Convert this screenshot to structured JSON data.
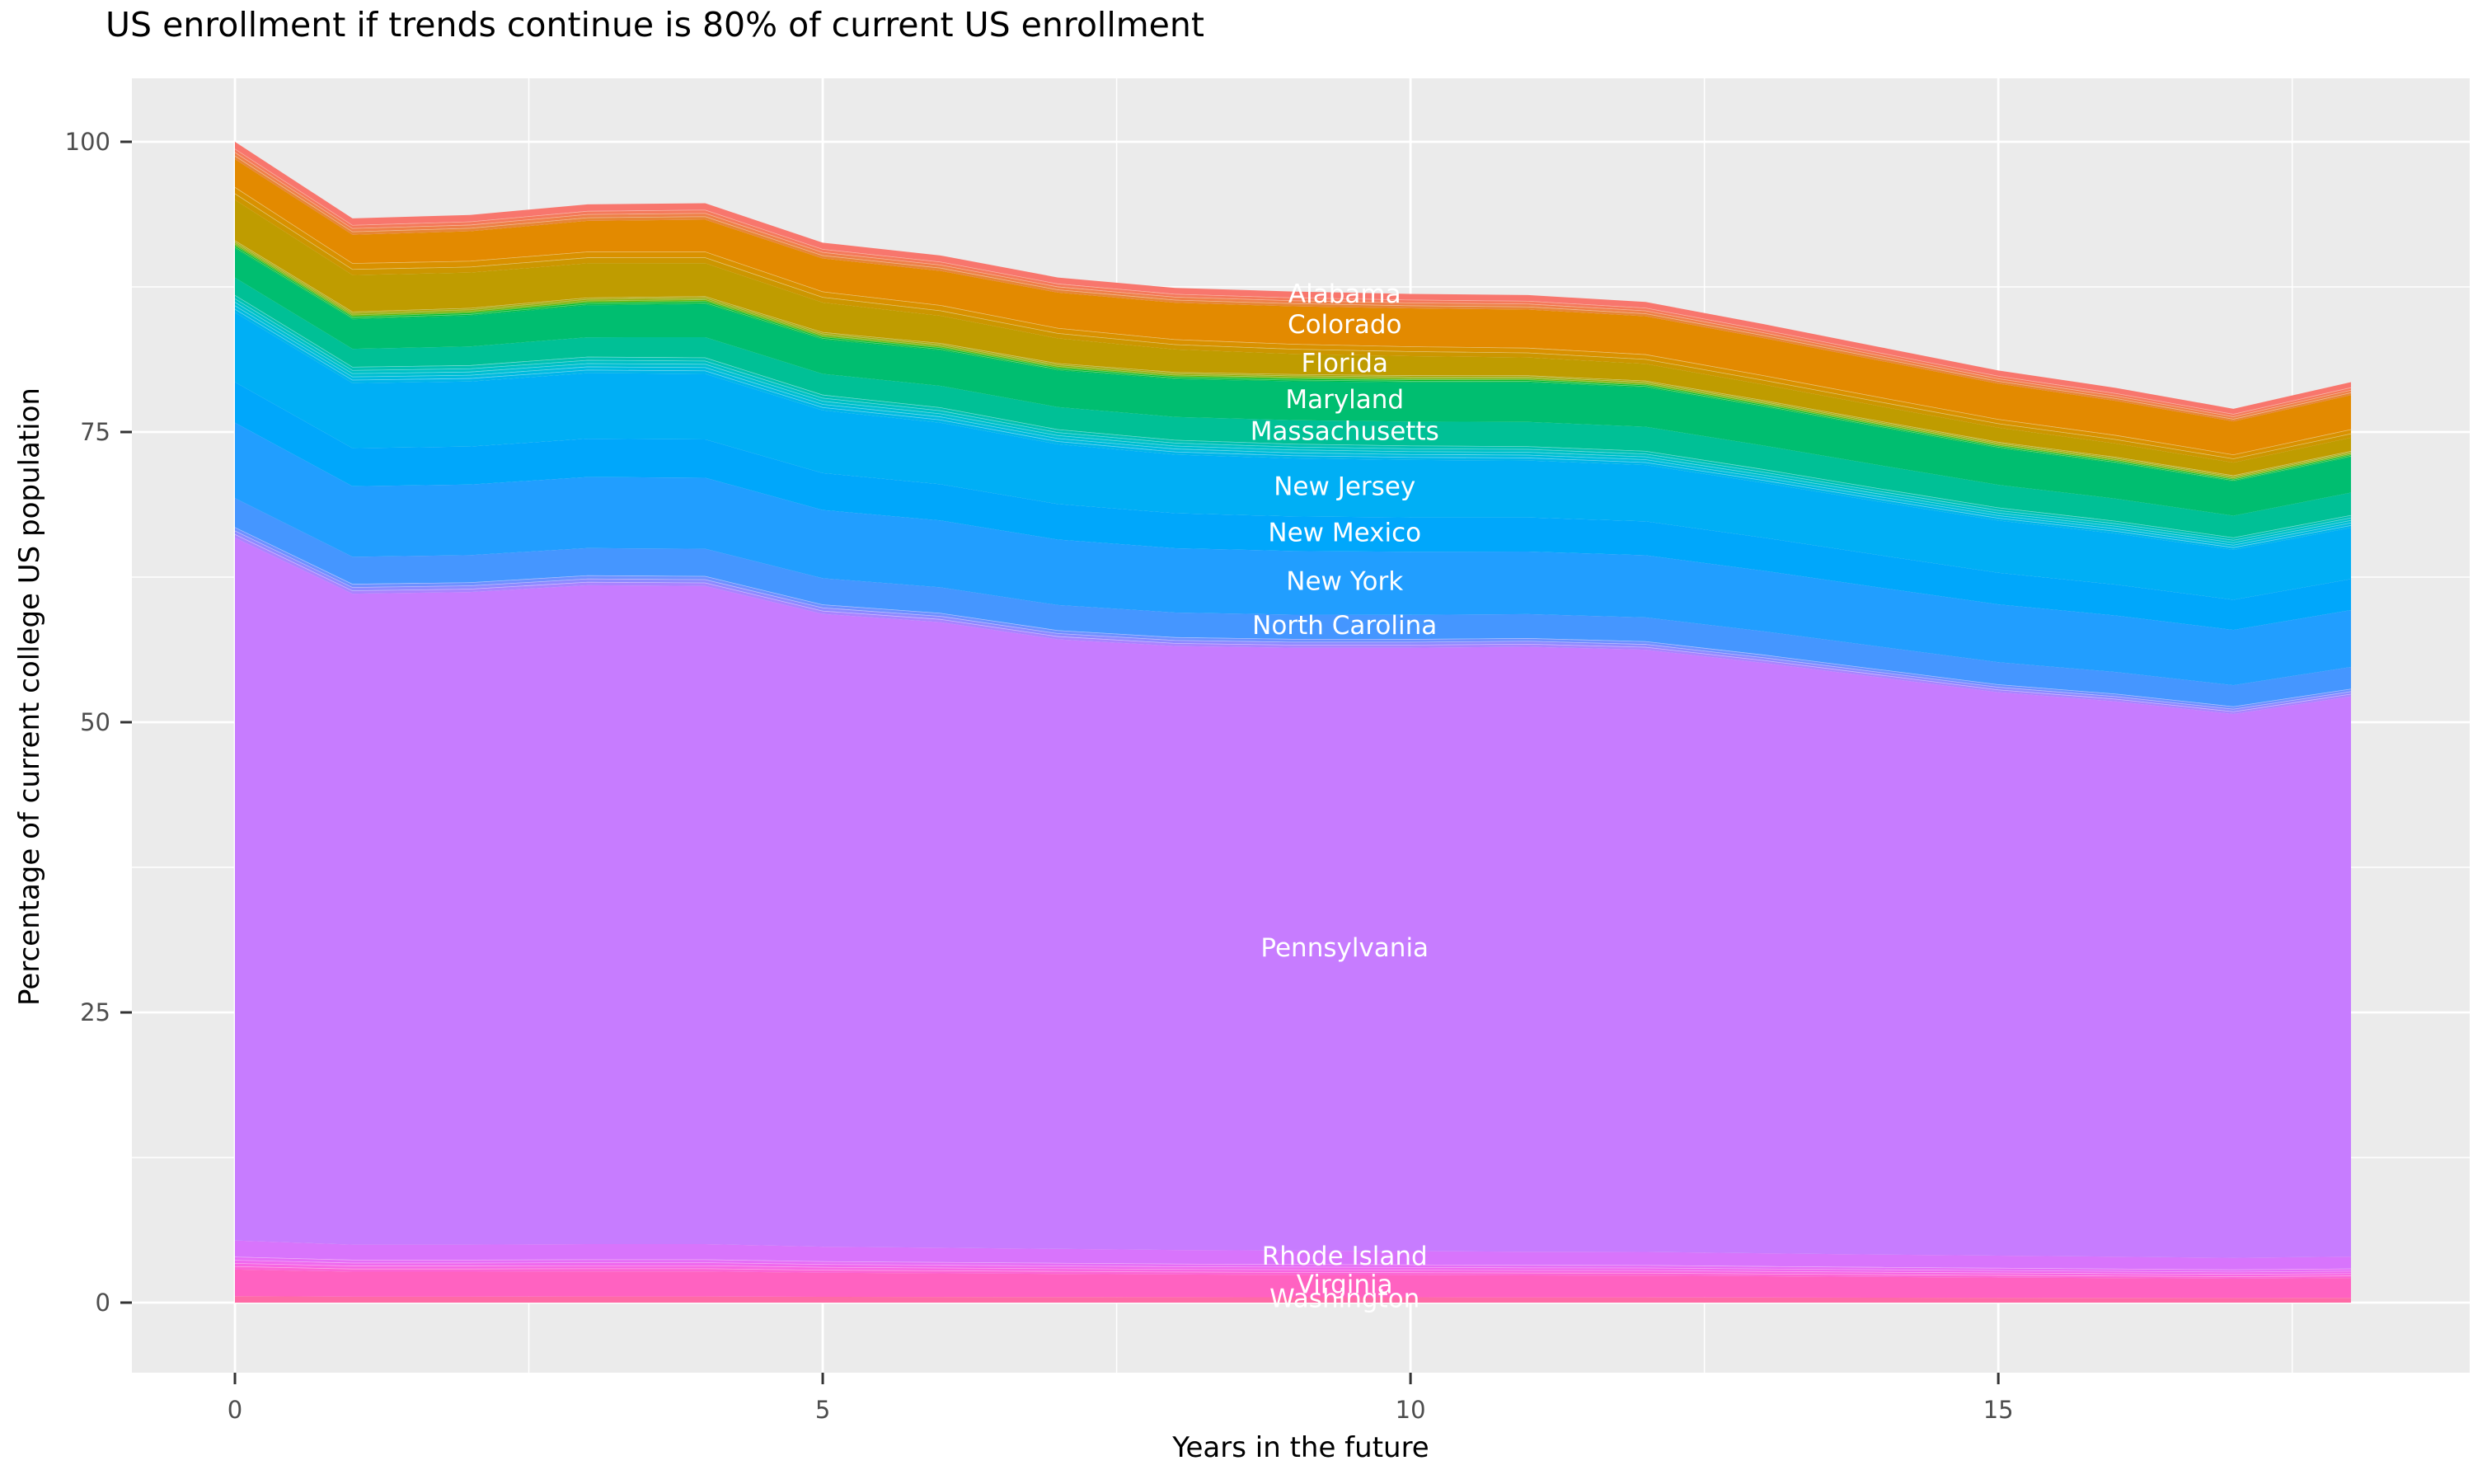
{
  "chart_data": {
    "type": "area",
    "variant": "stacked-area",
    "title": "US enrollment if trends continue is 80% of current US enrollment",
    "xlabel": "Years in the future",
    "ylabel": "Percentage of current college US population",
    "xlim": [
      0,
      18
    ],
    "ylim": [
      0,
      100
    ],
    "grid": "major-and-minor-white-on-grey-panel",
    "legend": "none-labels-drawn-on-areas",
    "series_label_x": 9.44,
    "x": [
      0,
      1,
      2,
      3,
      4,
      5,
      6,
      7,
      8,
      9,
      10,
      11,
      12,
      13,
      14,
      15,
      16,
      17,
      18
    ],
    "x_ticks": [
      0,
      5,
      10,
      15
    ],
    "x_tick_labels": [
      "0",
      "5",
      "10",
      "15"
    ],
    "x_minor": [
      2.5,
      7.5,
      12.5,
      17.5
    ],
    "y_ticks": [
      0,
      25,
      50,
      75,
      100
    ],
    "y_tick_labels": [
      "0",
      "25",
      "50",
      "75",
      "100"
    ],
    "y_minor": [
      12.5,
      37.5,
      62.5,
      87.5
    ],
    "colors": {
      "panel_bg": "#EBEBEB",
      "grid": "#FFFFFF",
      "tick_text": "#4D4D4D",
      "tick_mark": "#333333",
      "title_text": "#000000",
      "series_label": "#FFFFFF"
    },
    "series": [
      {
        "name": "alabama",
        "label": "Alabama",
        "color": "#F8766D",
        "values": [
          0.6,
          0.57,
          0.57,
          0.57,
          0.57,
          0.55,
          0.54,
          0.53,
          0.52,
          0.52,
          0.51,
          0.51,
          0.5,
          0.49,
          0.48,
          0.47,
          0.46,
          0.45,
          0.46
        ]
      },
      {
        "name": "others-a",
        "stripe_colors": [
          "#F4795B",
          "#EE8049",
          "#E78636"
        ],
        "values": [
          0.9,
          0.84,
          0.84,
          0.85,
          0.85,
          0.81,
          0.79,
          0.77,
          0.76,
          0.75,
          0.74,
          0.74,
          0.73,
          0.71,
          0.69,
          0.67,
          0.66,
          0.64,
          0.66
        ]
      },
      {
        "name": "colorado",
        "label": "Colorado",
        "color": "#E38A00",
        "values": [
          2.4,
          2.45,
          2.55,
          2.65,
          2.75,
          2.85,
          2.95,
          3.05,
          3.15,
          3.25,
          3.28,
          3.3,
          3.28,
          3.22,
          3.15,
          3.05,
          2.95,
          2.85,
          2.95
        ]
      },
      {
        "name": "others-b",
        "stripe_colors": [
          "#D99100",
          "#CC9600"
        ],
        "values": [
          1.1,
          1.02,
          1.01,
          1.01,
          1.0,
          0.95,
          0.92,
          0.89,
          0.87,
          0.85,
          0.84,
          0.83,
          0.82,
          0.79,
          0.77,
          0.74,
          0.72,
          0.7,
          0.72
        ]
      },
      {
        "name": "florida",
        "label": "Florida",
        "color": "#BF9C00",
        "values": [
          3.5,
          3.15,
          3.05,
          2.95,
          2.85,
          2.55,
          2.35,
          2.15,
          1.95,
          1.75,
          1.65,
          1.55,
          1.45,
          1.35,
          1.28,
          1.22,
          1.16,
          1.1,
          1.14
        ]
      },
      {
        "name": "others-c",
        "stripe_colors": [
          "#ABA300",
          "#8FAA00",
          "#65B200",
          "#00B81F",
          "#00BB44"
        ],
        "values": [
          0.7,
          0.66,
          0.66,
          0.67,
          0.67,
          0.64,
          0.63,
          0.62,
          0.61,
          0.61,
          0.6,
          0.6,
          0.59,
          0.58,
          0.56,
          0.55,
          0.54,
          0.52,
          0.54
        ]
      },
      {
        "name": "maryland",
        "label": "Maryland",
        "color": "#00BE70",
        "values": [
          2.5,
          2.55,
          2.65,
          2.75,
          2.85,
          2.95,
          3.05,
          3.15,
          3.25,
          3.35,
          3.38,
          3.4,
          3.38,
          3.32,
          3.25,
          3.15,
          3.05,
          2.95,
          3.05
        ]
      },
      {
        "name": "massachusetts",
        "label": "Massachusetts",
        "color": "#00C096",
        "values": [
          1.5,
          1.55,
          1.62,
          1.68,
          1.75,
          1.8,
          1.86,
          1.92,
          1.98,
          2.04,
          2.07,
          2.1,
          2.08,
          2.04,
          2.0,
          1.96,
          1.92,
          1.88,
          1.94
        ]
      },
      {
        "name": "others-d",
        "stripe_colors": [
          "#00C1B2",
          "#00C1C5",
          "#00BFD2",
          "#00BBDE",
          "#00B5EA"
        ],
        "values": [
          1.5,
          1.4,
          1.4,
          1.41,
          1.41,
          1.35,
          1.32,
          1.29,
          1.27,
          1.25,
          1.24,
          1.23,
          1.22,
          1.18,
          1.15,
          1.12,
          1.09,
          1.06,
          1.09
        ]
      },
      {
        "name": "new-jersey",
        "label": "New Jersey",
        "color": "#00AFF5",
        "values": [
          6.0,
          5.6,
          5.6,
          5.65,
          5.65,
          5.4,
          5.3,
          5.15,
          5.05,
          5.0,
          4.95,
          4.9,
          4.85,
          4.72,
          4.6,
          4.5,
          4.4,
          4.3,
          4.42
        ]
      },
      {
        "name": "new-mexico",
        "label": "New Mexico",
        "color": "#00A7FB",
        "values": [
          3.5,
          3.28,
          3.28,
          3.3,
          3.3,
          3.18,
          3.12,
          3.06,
          3.01,
          2.98,
          2.96,
          2.94,
          2.92,
          2.85,
          2.78,
          2.72,
          2.66,
          2.6,
          2.67
        ]
      },
      {
        "name": "new-york",
        "label": "New York",
        "color": "#219EFF",
        "values": [
          6.5,
          6.08,
          6.08,
          6.12,
          6.12,
          5.88,
          5.76,
          5.64,
          5.54,
          5.48,
          5.43,
          5.39,
          5.35,
          5.22,
          5.09,
          4.98,
          4.87,
          4.76,
          4.9
        ]
      },
      {
        "name": "north-carolina",
        "label": "North Carolina",
        "color": "#4596FF",
        "values": [
          2.5,
          2.34,
          2.34,
          2.35,
          2.35,
          2.26,
          2.21,
          2.17,
          2.13,
          2.1,
          2.09,
          2.07,
          2.06,
          2.01,
          1.96,
          1.91,
          1.87,
          1.83,
          1.88
        ]
      },
      {
        "name": "others-e",
        "stripe_colors": [
          "#6E90FF",
          "#8D8AFF",
          "#A983FF"
        ],
        "values": [
          0.9,
          0.84,
          0.84,
          0.85,
          0.85,
          0.81,
          0.79,
          0.78,
          0.76,
          0.75,
          0.74,
          0.74,
          0.73,
          0.71,
          0.69,
          0.68,
          0.66,
          0.65,
          0.66
        ]
      },
      {
        "name": "pennsylvania",
        "label": "Pennsylvania",
        "color": "#C77CFF",
        "values": [
          60.55,
          56.07,
          56.21,
          56.76,
          56.7,
          54.51,
          53.89,
          52.51,
          52.02,
          51.94,
          51.98,
          52.11,
          51.87,
          50.86,
          49.71,
          48.53,
          47.83,
          46.85,
          48.25
        ]
      },
      {
        "name": "rhode-island",
        "label": "Rhode Island",
        "color": "#D874FC",
        "values": [
          1.4,
          1.31,
          1.31,
          1.32,
          1.32,
          1.26,
          1.24,
          1.21,
          1.19,
          1.17,
          1.16,
          1.15,
          1.14,
          1.11,
          1.08,
          1.06,
          1.04,
          1.01,
          1.04
        ]
      },
      {
        "name": "others-f",
        "stripe_colors": [
          "#E56DF6",
          "#EF68EE",
          "#F766E3",
          "#FC64D4"
        ],
        "values": [
          1.1,
          1.03,
          1.03,
          1.04,
          1.04,
          0.99,
          0.97,
          0.95,
          0.93,
          0.92,
          0.91,
          0.9,
          0.9,
          0.87,
          0.85,
          0.83,
          0.81,
          0.79,
          0.81
        ]
      },
      {
        "name": "virginia",
        "label": "Virginia",
        "color": "#FF62C1",
        "values": [
          2.3,
          2.15,
          2.15,
          2.16,
          2.16,
          2.07,
          2.03,
          1.99,
          1.95,
          1.93,
          1.91,
          1.89,
          1.88,
          1.83,
          1.78,
          1.74,
          1.7,
          1.66,
          1.71
        ]
      },
      {
        "name": "washington",
        "label": "Washington",
        "color": "#FF6BA6",
        "values": [
          0.55,
          0.51,
          0.51,
          0.52,
          0.52,
          0.5,
          0.49,
          0.48,
          0.47,
          0.46,
          0.46,
          0.45,
          0.45,
          0.44,
          0.43,
          0.42,
          0.41,
          0.4,
          0.41
        ]
      }
    ]
  }
}
